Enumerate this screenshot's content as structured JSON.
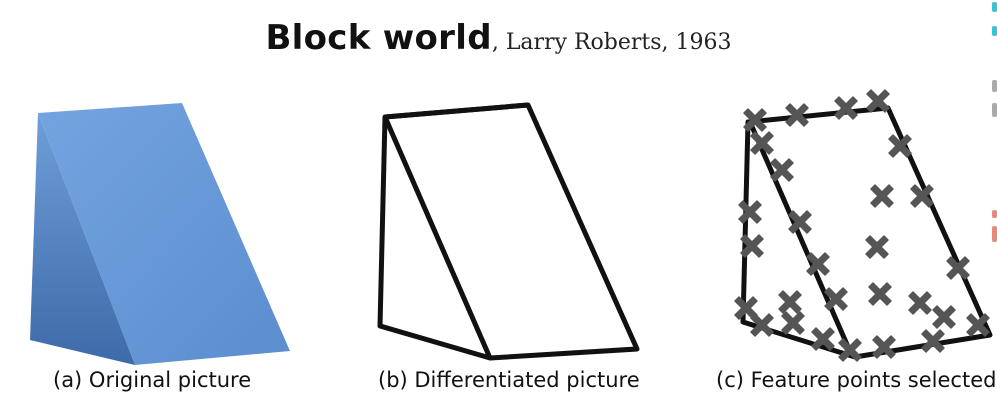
{
  "title": {
    "main": "Block world",
    "subtitle": ", Larry Roberts, 1963"
  },
  "panels": [
    {
      "id": "a",
      "caption": "(a) Original picture"
    },
    {
      "id": "b",
      "caption": "(b) Differentiated picture"
    },
    {
      "id": "c",
      "caption": "(c) Feature points selected"
    }
  ],
  "colors": {
    "block_blue": "#6f9fdb",
    "block_shadow": "#3c68a6",
    "edge_black": "#111111",
    "marker_gray": "#555555"
  }
}
